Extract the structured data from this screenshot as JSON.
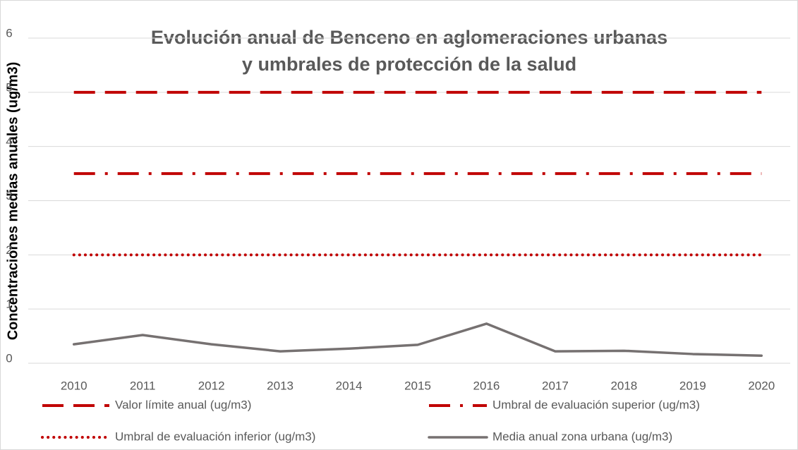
{
  "chart_data": {
    "type": "line",
    "title": [
      "Evolución anual de Benceno en aglomeraciones urbanas",
      "y umbrales de  protección de la salud"
    ],
    "y_label": "Concentraciones medias anuales (ug/m3)",
    "categories": [
      "2010",
      "2011",
      "2012",
      "2013",
      "2014",
      "2015",
      "2016",
      "2017",
      "2018",
      "2019",
      "2020"
    ],
    "ylim": [
      0,
      6
    ],
    "yticks": [
      0,
      1,
      2,
      3,
      4,
      5,
      6
    ],
    "grid": true,
    "legend": "bottom",
    "series": [
      {
        "name": "Valor límite anual (ug/m3)",
        "color": "#c00000",
        "line_style": "dashed",
        "values": [
          5,
          5,
          5,
          5,
          5,
          5,
          5,
          5,
          5,
          5,
          5
        ]
      },
      {
        "name": "Umbral de evaluación superior (ug/m3)",
        "color": "#c00000",
        "line_style": "dashdot",
        "values": [
          3.5,
          3.5,
          3.5,
          3.5,
          3.5,
          3.5,
          3.5,
          3.5,
          3.5,
          3.5,
          3.5
        ]
      },
      {
        "name": "Umbral de evaluación inferior (ug/m3)",
        "color": "#c00000",
        "line_style": "dotted",
        "values": [
          2,
          2,
          2,
          2,
          2,
          2,
          2,
          2,
          2,
          2,
          2
        ]
      },
      {
        "name": "Media anual zona urbana (ug/m3)",
        "color": "#767171",
        "line_style": "solid",
        "values": [
          0.35,
          0.52,
          0.35,
          0.22,
          0.27,
          0.34,
          0.73,
          0.22,
          0.23,
          0.17,
          0.14
        ]
      }
    ]
  }
}
